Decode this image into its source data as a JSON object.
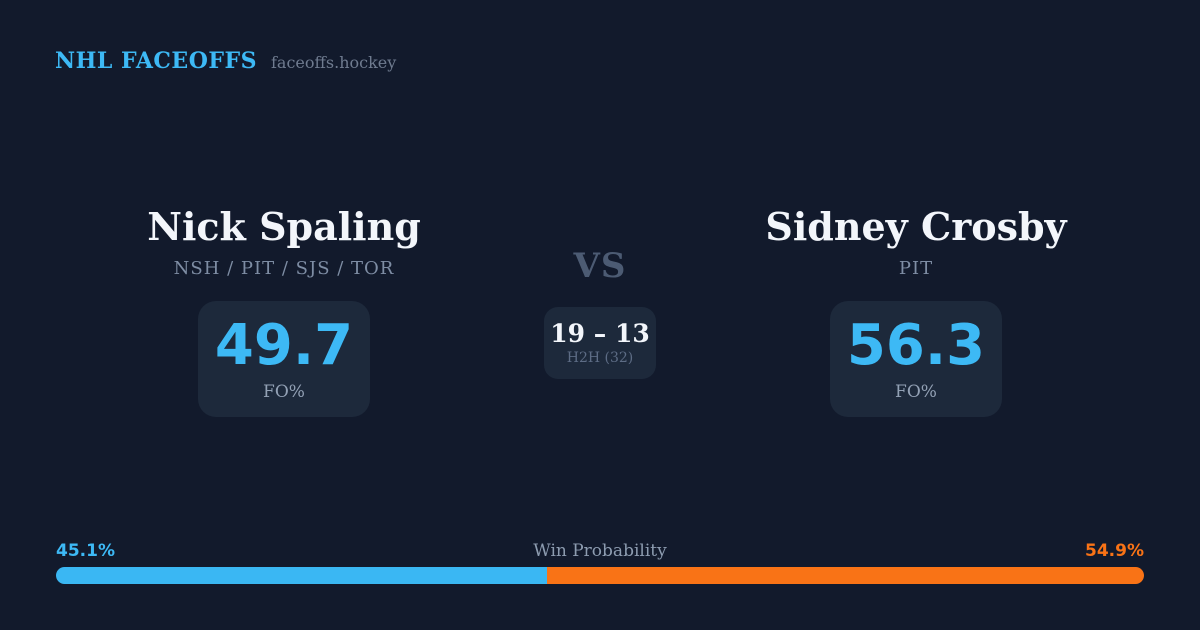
{
  "header": {
    "brand": "NHL FACEOFFS",
    "site": "faceoffs.hockey"
  },
  "player_left": {
    "name": "Nick Spaling",
    "teams": "NSH / PIT / SJS / TOR",
    "stat_value": "49.7",
    "stat_label": "FO%"
  },
  "matchup": {
    "vs_label": "VS",
    "h2h_score": "19 – 13",
    "h2h_sub": "H2H (32)"
  },
  "player_right": {
    "name": "Sidney Crosby",
    "teams": "PIT",
    "stat_value": "56.3",
    "stat_label": "FO%"
  },
  "win_probability": {
    "title": "Win Probability",
    "left_pct": "45.1%",
    "right_pct": "54.9%",
    "left_value": 45.1,
    "right_value": 54.9
  },
  "colors": {
    "background": "#121a2c",
    "card": "#1d293b",
    "accent_blue": "#3db9f5",
    "accent_orange": "#f97316",
    "text_white": "#f3f6fb",
    "text_muted": "#7e8da4"
  }
}
